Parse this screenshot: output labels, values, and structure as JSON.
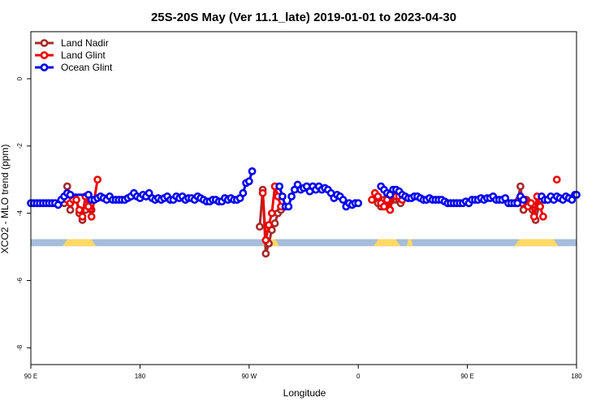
{
  "chart_data": {
    "type": "line",
    "title": "25S-20S May (Ver 11.1_late)   2019-01-01 to 2023-04-30",
    "xlabel": "Longitude",
    "ylabel": "XCO2 - MLO trend (ppm)",
    "xlim": [
      -90,
      270
    ],
    "ylim": [
      -8.5,
      1.4
    ],
    "x_ticks": [
      {
        "value": -90,
        "label": "90 E"
      },
      {
        "value": -18,
        "label": "180"
      },
      {
        "value": 54,
        "label": "90 W"
      },
      {
        "value": 126,
        "label": "0"
      },
      {
        "value": 198,
        "label": "90 E"
      },
      {
        "value": 270,
        "label": "180"
      }
    ],
    "y_ticks": [
      {
        "value": 0,
        "label": "0"
      },
      {
        "value": -2,
        "label": "-2"
      },
      {
        "value": -4,
        "label": "-4"
      },
      {
        "value": -6,
        "label": "-6"
      },
      {
        "value": -8,
        "label": "-8"
      }
    ],
    "legend_position": "top-left",
    "colors": {
      "land_nadir": "#a52a2a",
      "land_glint": "#ee0000",
      "ocean_glint": "#0000ee",
      "ocean_band": "#a6bddb",
      "land_band": "#ffd966"
    },
    "land_mask": {
      "y_range": [
        -4.98,
        -4.77
      ],
      "land_segments": [
        [
          -69,
          -47
        ],
        [
          63,
          74
        ],
        [
          136,
          154
        ],
        [
          158,
          162
        ],
        [
          229,
          258
        ]
      ]
    },
    "series": [
      {
        "name": "Land Nadir",
        "key": "land_nadir",
        "segments": [
          [
            [
              -68,
              -3.7
            ],
            [
              -66,
              -3.2
            ],
            [
              -64,
              -3.9
            ],
            [
              -62,
              -3.6
            ],
            [
              -60,
              -3.6
            ],
            [
              -58,
              -4.0
            ],
            [
              -56,
              -4.2
            ],
            [
              -54,
              -3.9
            ],
            [
              -52,
              -3.6
            ],
            [
              -50,
              -3.9
            ]
          ],
          [
            [
              61,
              -4.4
            ],
            [
              63,
              -3.3
            ],
            [
              65,
              -5.2
            ],
            [
              67,
              -4.9
            ],
            [
              69,
              -4.5
            ],
            [
              71,
              -4.3
            ],
            [
              73,
              -4.0
            ],
            [
              75,
              -3.9
            ]
          ],
          [
            [
              137,
              -3.6
            ],
            [
              139,
              -3.7
            ],
            [
              141,
              -3.8
            ],
            [
              143,
              -3.6
            ],
            [
              145,
              -3.7
            ],
            [
              147,
              -3.5
            ],
            [
              149,
              -3.6
            ],
            [
              151,
              -3.6
            ],
            [
              153,
              -3.6
            ],
            [
              154,
              -3.7
            ]
          ],
          [
            [
              231,
              -3.7
            ],
            [
              233,
              -3.2
            ],
            [
              235,
              -3.9
            ],
            [
              237,
              -3.6
            ],
            [
              239,
              -3.7
            ],
            [
              241,
              -3.9
            ],
            [
              243,
              -4.2
            ],
            [
              245,
              -3.8
            ],
            [
              247,
              -3.6
            ],
            [
              249,
              -3.6
            ]
          ]
        ]
      },
      {
        "name": "Land Glint",
        "key": "land_glint",
        "segments": [
          [
            [
              -66,
              -3.6
            ],
            [
              -64,
              -3.7
            ],
            [
              -62,
              -3.6
            ],
            [
              -60,
              -3.6
            ],
            [
              -58,
              -3.9
            ],
            [
              -56,
              -4.1
            ],
            [
              -54,
              -3.5
            ],
            [
              -52,
              -3.8
            ],
            [
              -50,
              -4.1
            ],
            [
              -46,
              -3.0
            ]
          ],
          [
            [
              63,
              -3.4
            ],
            [
              65,
              -4.8
            ],
            [
              67,
              -4.35
            ],
            [
              69,
              -4.0
            ],
            [
              71,
              -3.2
            ],
            [
              73,
              -3.5
            ],
            [
              75,
              -3.8
            ]
          ],
          [
            [
              135,
              -3.6
            ],
            [
              137,
              -3.4
            ],
            [
              139,
              -3.5
            ],
            [
              141,
              -3.7
            ],
            [
              143,
              -3.8
            ],
            [
              145,
              -3.6
            ],
            [
              147,
              -3.9
            ],
            [
              149,
              -3.5
            ],
            [
              151,
              -3.5
            ],
            [
              153,
              -3.5
            ],
            [
              155,
              -3.6
            ]
          ],
          [
            [
              232,
              -3.6
            ],
            [
              234,
              -3.7
            ],
            [
              236,
              -3.6
            ],
            [
              238,
              -3.8
            ],
            [
              240,
              -3.7
            ],
            [
              242,
              -4.1
            ],
            [
              244,
              -3.5
            ],
            [
              246,
              -3.8
            ],
            [
              248,
              -4.1
            ]
          ],
          [
            [
              257,
              -3.0
            ]
          ]
        ]
      },
      {
        "name": "Ocean Glint",
        "key": "ocean_glint",
        "segments": [
          [
            [
              -90,
              -3.7
            ],
            [
              -88,
              -3.7
            ],
            [
              -86,
              -3.7
            ],
            [
              -84,
              -3.7
            ],
            [
              -82,
              -3.7
            ],
            [
              -80,
              -3.7
            ],
            [
              -78,
              -3.7
            ],
            [
              -76,
              -3.7
            ],
            [
              -74,
              -3.7
            ],
            [
              -72,
              -3.75
            ],
            [
              -70,
              -3.6
            ],
            [
              -68,
              -3.5
            ]
          ],
          [
            [
              -66,
              -3.4
            ],
            [
              -64,
              -3.45
            ],
            [
              -52,
              -3.45
            ],
            [
              -50,
              -3.6
            ],
            [
              -48,
              -3.6
            ],
            [
              -46,
              -3.55
            ],
            [
              -44,
              -3.5
            ],
            [
              -42,
              -3.55
            ],
            [
              -40,
              -3.6
            ],
            [
              -38,
              -3.5
            ],
            [
              -36,
              -3.6
            ],
            [
              -34,
              -3.6
            ],
            [
              -32,
              -3.6
            ],
            [
              -30,
              -3.6
            ],
            [
              -28,
              -3.6
            ],
            [
              -26,
              -3.55
            ],
            [
              -24,
              -3.5
            ],
            [
              -22,
              -3.4
            ],
            [
              -20,
              -3.5
            ],
            [
              -18,
              -3.55
            ],
            [
              -16,
              -3.45
            ],
            [
              -14,
              -3.5
            ],
            [
              -12,
              -3.4
            ],
            [
              -10,
              -3.55
            ],
            [
              -8,
              -3.6
            ],
            [
              -6,
              -3.55
            ],
            [
              -4,
              -3.6
            ],
            [
              -2,
              -3.55
            ],
            [
              0,
              -3.5
            ],
            [
              2,
              -3.6
            ],
            [
              4,
              -3.6
            ],
            [
              6,
              -3.5
            ],
            [
              8,
              -3.55
            ],
            [
              10,
              -3.5
            ],
            [
              12,
              -3.6
            ],
            [
              14,
              -3.55
            ],
            [
              16,
              -3.55
            ],
            [
              18,
              -3.6
            ],
            [
              20,
              -3.5
            ],
            [
              22,
              -3.55
            ],
            [
              24,
              -3.6
            ],
            [
              26,
              -3.65
            ],
            [
              28,
              -3.65
            ],
            [
              30,
              -3.6
            ],
            [
              32,
              -3.6
            ],
            [
              34,
              -3.65
            ],
            [
              36,
              -3.65
            ],
            [
              38,
              -3.55
            ],
            [
              40,
              -3.6
            ],
            [
              42,
              -3.55
            ],
            [
              44,
              -3.6
            ],
            [
              46,
              -3.6
            ],
            [
              48,
              -3.55
            ],
            [
              50,
              -3.4
            ],
            [
              52,
              -3.1
            ],
            [
              54,
              -3.05
            ],
            [
              56,
              -2.75
            ]
          ],
          [
            [
              74,
              -3.2
            ],
            [
              76,
              -3.5
            ],
            [
              78,
              -3.8
            ],
            [
              80,
              -3.8
            ],
            [
              82,
              -3.5
            ],
            [
              84,
              -3.3
            ],
            [
              86,
              -3.15
            ],
            [
              88,
              -3.3
            ],
            [
              90,
              -3.25
            ],
            [
              92,
              -3.2
            ],
            [
              94,
              -3.35
            ],
            [
              96,
              -3.2
            ],
            [
              98,
              -3.3
            ],
            [
              100,
              -3.2
            ],
            [
              102,
              -3.3
            ],
            [
              104,
              -3.25
            ],
            [
              106,
              -3.3
            ],
            [
              108,
              -3.4
            ],
            [
              110,
              -3.55
            ],
            [
              112,
              -3.45
            ],
            [
              114,
              -3.5
            ],
            [
              116,
              -3.6
            ],
            [
              118,
              -3.8
            ],
            [
              120,
              -3.7
            ],
            [
              122,
              -3.75
            ],
            [
              124,
              -3.7
            ],
            [
              126,
              -3.7
            ]
          ],
          [
            [
              141,
              -3.2
            ],
            [
              143,
              -3.3
            ],
            [
              145,
              -3.4
            ],
            [
              147,
              -3.45
            ],
            [
              149,
              -3.3
            ],
            [
              151,
              -3.3
            ],
            [
              153,
              -3.35
            ],
            [
              155,
              -3.45
            ],
            [
              157,
              -3.5
            ],
            [
              159,
              -3.55
            ],
            [
              161,
              -3.55
            ],
            [
              163,
              -3.5
            ],
            [
              165,
              -3.5
            ],
            [
              167,
              -3.55
            ],
            [
              169,
              -3.6
            ],
            [
              171,
              -3.6
            ],
            [
              173,
              -3.55
            ],
            [
              175,
              -3.6
            ],
            [
              177,
              -3.6
            ],
            [
              179,
              -3.6
            ],
            [
              181,
              -3.6
            ],
            [
              183,
              -3.65
            ],
            [
              185,
              -3.7
            ],
            [
              187,
              -3.7
            ],
            [
              189,
              -3.7
            ],
            [
              191,
              -3.7
            ],
            [
              193,
              -3.7
            ],
            [
              195,
              -3.7
            ],
            [
              197,
              -3.65
            ],
            [
              199,
              -3.7
            ],
            [
              201,
              -3.6
            ],
            [
              203,
              -3.6
            ],
            [
              205,
              -3.6
            ],
            [
              207,
              -3.55
            ],
            [
              209,
              -3.6
            ],
            [
              211,
              -3.55
            ],
            [
              213,
              -3.55
            ],
            [
              215,
              -3.5
            ],
            [
              217,
              -3.6
            ],
            [
              219,
              -3.6
            ],
            [
              221,
              -3.6
            ],
            [
              223,
              -3.55
            ],
            [
              225,
              -3.7
            ],
            [
              227,
              -3.7
            ],
            [
              229,
              -3.7
            ],
            [
              231,
              -3.7
            ],
            [
              233,
              -3.5
            ],
            [
              235,
              -3.6
            ]
          ],
          [
            [
              247,
              -3.5
            ],
            [
              249,
              -3.6
            ],
            [
              251,
              -3.6
            ],
            [
              253,
              -3.5
            ],
            [
              255,
              -3.6
            ],
            [
              257,
              -3.5
            ],
            [
              259,
              -3.55
            ],
            [
              261,
              -3.6
            ],
            [
              263,
              -3.5
            ],
            [
              265,
              -3.55
            ],
            [
              267,
              -3.6
            ],
            [
              269,
              -3.45
            ],
            [
              270,
              -3.45
            ]
          ]
        ]
      }
    ]
  }
}
